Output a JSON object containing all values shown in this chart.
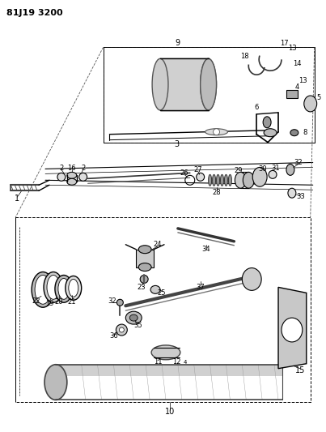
{
  "title": "81J19 3200",
  "bg": "#ffffff",
  "lc": "#000000",
  "gray1": "#555555",
  "gray2": "#888888",
  "gray3": "#bbbbbb",
  "fig_width": 4.03,
  "fig_height": 5.33,
  "dpi": 100
}
